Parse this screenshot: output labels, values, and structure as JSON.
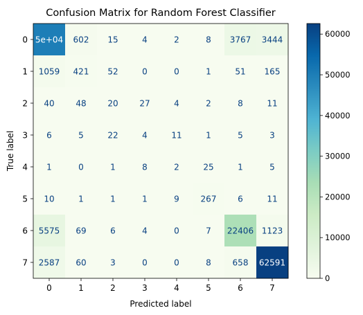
{
  "chart_data": {
    "type": "heatmap",
    "title": "Confusion Matrix for Random Forest Classifier",
    "xlabel": "Predicted label",
    "ylabel": "True label",
    "x_tick_labels": [
      "0",
      "1",
      "2",
      "3",
      "4",
      "5",
      "6",
      "7"
    ],
    "y_tick_labels": [
      "0",
      "1",
      "2",
      "3",
      "4",
      "5",
      "6",
      "7"
    ],
    "values": [
      [
        50000,
        602,
        15,
        4,
        2,
        8,
        3767,
        3444
      ],
      [
        1059,
        421,
        52,
        0,
        0,
        1,
        51,
        165
      ],
      [
        40,
        48,
        20,
        27,
        4,
        2,
        8,
        11
      ],
      [
        6,
        5,
        22,
        4,
        11,
        1,
        5,
        3
      ],
      [
        1,
        0,
        1,
        8,
        2,
        25,
        1,
        5
      ],
      [
        10,
        1,
        1,
        1,
        9,
        267,
        6,
        11
      ],
      [
        5575,
        69,
        6,
        4,
        0,
        7,
        22406,
        1123
      ],
      [
        2587,
        60,
        3,
        0,
        0,
        8,
        658,
        62591
      ]
    ],
    "cell_labels": [
      [
        "5e+04",
        "602",
        "15",
        "4",
        "2",
        "8",
        "3767",
        "3444"
      ],
      [
        "1059",
        "421",
        "52",
        "0",
        "0",
        "1",
        "51",
        "165"
      ],
      [
        "40",
        "48",
        "20",
        "27",
        "4",
        "2",
        "8",
        "11"
      ],
      [
        "6",
        "5",
        "22",
        "4",
        "11",
        "1",
        "5",
        "3"
      ],
      [
        "1",
        "0",
        "1",
        "8",
        "2",
        "25",
        "1",
        "5"
      ],
      [
        "10",
        "1",
        "1",
        "1",
        "9",
        "267",
        "6",
        "11"
      ],
      [
        "5575",
        "69",
        "6",
        "4",
        "0",
        "7",
        "22406",
        "1123"
      ],
      [
        "2587",
        "60",
        "3",
        "0",
        "0",
        "8",
        "658",
        "62591"
      ]
    ],
    "colormap": "GnBu",
    "vmin": 0,
    "vmax": 62591,
    "colorbar_ticks": [
      0,
      10000,
      20000,
      30000,
      40000,
      50000,
      60000
    ],
    "colorbar_tick_labels": [
      "0",
      "10000",
      "20000",
      "30000",
      "40000",
      "50000",
      "60000"
    ],
    "text_color_light": "#ffffff",
    "text_color_dark": "#084081",
    "colormap_stops": [
      "#f7fcf0",
      "#e0f3db",
      "#ccebc5",
      "#a8ddb5",
      "#7bccc4",
      "#4eb3d3",
      "#2b8cbe",
      "#0868ac",
      "#084081"
    ]
  }
}
